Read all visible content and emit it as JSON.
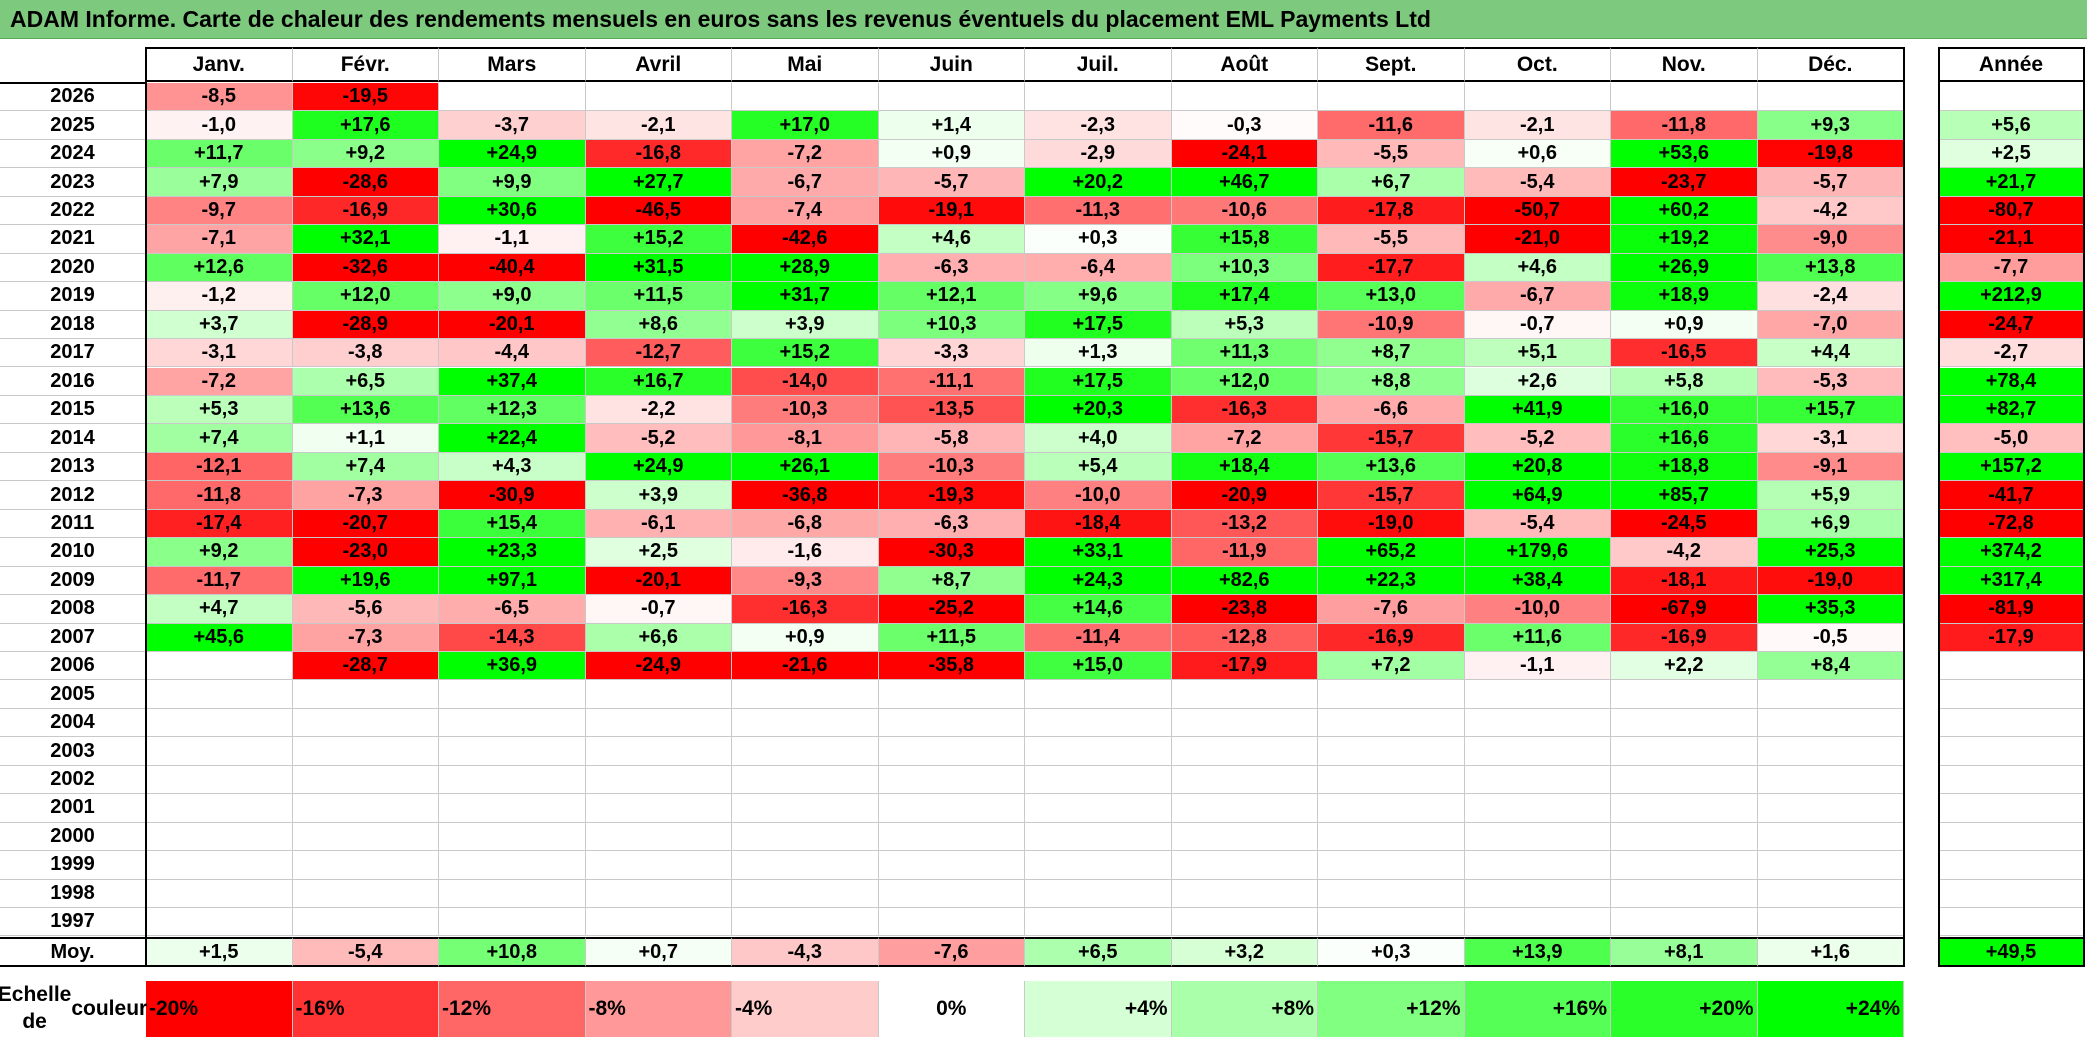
{
  "title": "ADAM Informe. Carte de chaleur des rendements mensuels en euros sans les revenus éventuels du placement EML Payments Ltd",
  "chart_data": {
    "type": "heatmap",
    "title": "ADAM Informe. Carte de chaleur des rendements mensuels en euros sans les revenus éventuels du placement EML Payments Ltd",
    "months": [
      "Janv.",
      "Févr.",
      "Mars",
      "Avril",
      "Mai",
      "Juin",
      "Juil.",
      "Août",
      "Sept.",
      "Oct.",
      "Nov.",
      "Déc."
    ],
    "year_header": "Année",
    "rows": [
      {
        "year": "2026",
        "values": [
          "-8,5",
          "-19,5",
          "",
          "",
          "",
          "",
          "",
          "",
          "",
          "",
          "",
          ""
        ],
        "annual": ""
      },
      {
        "year": "2025",
        "values": [
          "-1,0",
          "+17,6",
          "-3,7",
          "-2,1",
          "+17,0",
          "+1,4",
          "-2,3",
          "-0,3",
          "-11,6",
          "-2,1",
          "-11,8",
          "+9,3"
        ],
        "annual": "+5,6"
      },
      {
        "year": "2024",
        "values": [
          "+11,7",
          "+9,2",
          "+24,9",
          "-16,8",
          "-7,2",
          "+0,9",
          "-2,9",
          "-24,1",
          "-5,5",
          "+0,6",
          "+53,6",
          "-19,8"
        ],
        "annual": "+2,5"
      },
      {
        "year": "2023",
        "values": [
          "+7,9",
          "-28,6",
          "+9,9",
          "+27,7",
          "-6,7",
          "-5,7",
          "+20,2",
          "+46,7",
          "+6,7",
          "-5,4",
          "-23,7",
          "-5,7"
        ],
        "annual": "+21,7"
      },
      {
        "year": "2022",
        "values": [
          "-9,7",
          "-16,9",
          "+30,6",
          "-46,5",
          "-7,4",
          "-19,1",
          "-11,3",
          "-10,6",
          "-17,8",
          "-50,7",
          "+60,2",
          "-4,2"
        ],
        "annual": "-80,7"
      },
      {
        "year": "2021",
        "values": [
          "-7,1",
          "+32,1",
          "-1,1",
          "+15,2",
          "-42,6",
          "+4,6",
          "+0,3",
          "+15,8",
          "-5,5",
          "-21,0",
          "+19,2",
          "-9,0"
        ],
        "annual": "-21,1"
      },
      {
        "year": "2020",
        "values": [
          "+12,6",
          "-32,6",
          "-40,4",
          "+31,5",
          "+28,9",
          "-6,3",
          "-6,4",
          "+10,3",
          "-17,7",
          "+4,6",
          "+26,9",
          "+13,8"
        ],
        "annual": "-7,7"
      },
      {
        "year": "2019",
        "values": [
          "-1,2",
          "+12,0",
          "+9,0",
          "+11,5",
          "+31,7",
          "+12,1",
          "+9,6",
          "+17,4",
          "+13,0",
          "-6,7",
          "+18,9",
          "-2,4"
        ],
        "annual": "+212,9"
      },
      {
        "year": "2018",
        "values": [
          "+3,7",
          "-28,9",
          "-20,1",
          "+8,6",
          "+3,9",
          "+10,3",
          "+17,5",
          "+5,3",
          "-10,9",
          "-0,7",
          "+0,9",
          "-7,0"
        ],
        "annual": "-24,7"
      },
      {
        "year": "2017",
        "values": [
          "-3,1",
          "-3,8",
          "-4,4",
          "-12,7",
          "+15,2",
          "-3,3",
          "+1,3",
          "+11,3",
          "+8,7",
          "+5,1",
          "-16,5",
          "+4,4"
        ],
        "annual": "-2,7"
      },
      {
        "year": "2016",
        "values": [
          "-7,2",
          "+6,5",
          "+37,4",
          "+16,7",
          "-14,0",
          "-11,1",
          "+17,5",
          "+12,0",
          "+8,8",
          "+2,6",
          "+5,8",
          "-5,3"
        ],
        "annual": "+78,4"
      },
      {
        "year": "2015",
        "values": [
          "+5,3",
          "+13,6",
          "+12,3",
          "-2,2",
          "-10,3",
          "-13,5",
          "+20,3",
          "-16,3",
          "-6,6",
          "+41,9",
          "+16,0",
          "+15,7"
        ],
        "annual": "+82,7"
      },
      {
        "year": "2014",
        "values": [
          "+7,4",
          "+1,1",
          "+22,4",
          "-5,2",
          "-8,1",
          "-5,8",
          "+4,0",
          "-7,2",
          "-15,7",
          "-5,2",
          "+16,6",
          "-3,1"
        ],
        "annual": "-5,0"
      },
      {
        "year": "2013",
        "values": [
          "-12,1",
          "+7,4",
          "+4,3",
          "+24,9",
          "+26,1",
          "-10,3",
          "+5,4",
          "+18,4",
          "+13,6",
          "+20,8",
          "+18,8",
          "-9,1"
        ],
        "annual": "+157,2"
      },
      {
        "year": "2012",
        "values": [
          "-11,8",
          "-7,3",
          "-30,9",
          "+3,9",
          "-36,8",
          "-19,3",
          "-10,0",
          "-20,9",
          "-15,7",
          "+64,9",
          "+85,7",
          "+5,9"
        ],
        "annual": "-41,7"
      },
      {
        "year": "2011",
        "values": [
          "-17,4",
          "-20,7",
          "+15,4",
          "-6,1",
          "-6,8",
          "-6,3",
          "-18,4",
          "-13,2",
          "-19,0",
          "-5,4",
          "-24,5",
          "+6,9"
        ],
        "annual": "-72,8"
      },
      {
        "year": "2010",
        "values": [
          "+9,2",
          "-23,0",
          "+23,3",
          "+2,5",
          "-1,6",
          "-30,3",
          "+33,1",
          "-11,9",
          "+65,2",
          "+179,6",
          "-4,2",
          "+25,3"
        ],
        "annual": "+374,2"
      },
      {
        "year": "2009",
        "values": [
          "-11,7",
          "+19,6",
          "+97,1",
          "-20,1",
          "-9,3",
          "+8,7",
          "+24,3",
          "+82,6",
          "+22,3",
          "+38,4",
          "-18,1",
          "-19,0"
        ],
        "annual": "+317,4"
      },
      {
        "year": "2008",
        "values": [
          "+4,7",
          "-5,6",
          "-6,5",
          "-0,7",
          "-16,3",
          "-25,2",
          "+14,6",
          "-23,8",
          "-7,6",
          "-10,0",
          "-67,9",
          "+35,3"
        ],
        "annual": "-81,9"
      },
      {
        "year": "2007",
        "values": [
          "+45,6",
          "-7,3",
          "-14,3",
          "+6,6",
          "+0,9",
          "+11,5",
          "-11,4",
          "-12,8",
          "-16,9",
          "+11,6",
          "-16,9",
          "-0,5"
        ],
        "annual": "-17,9"
      },
      {
        "year": "2006",
        "values": [
          "",
          "-28,7",
          "+36,9",
          "-24,9",
          "-21,6",
          "-35,8",
          "+15,0",
          "-17,9",
          "+7,2",
          "-1,1",
          "+2,2",
          "+8,4"
        ],
        "annual": ""
      },
      {
        "year": "2005",
        "values": [
          "",
          "",
          "",
          "",
          "",
          "",
          "",
          "",
          "",
          "",
          "",
          ""
        ],
        "annual": ""
      },
      {
        "year": "2004",
        "values": [
          "",
          "",
          "",
          "",
          "",
          "",
          "",
          "",
          "",
          "",
          "",
          ""
        ],
        "annual": ""
      },
      {
        "year": "2003",
        "values": [
          "",
          "",
          "",
          "",
          "",
          "",
          "",
          "",
          "",
          "",
          "",
          ""
        ],
        "annual": ""
      },
      {
        "year": "2002",
        "values": [
          "",
          "",
          "",
          "",
          "",
          "",
          "",
          "",
          "",
          "",
          "",
          ""
        ],
        "annual": ""
      },
      {
        "year": "2001",
        "values": [
          "",
          "",
          "",
          "",
          "",
          "",
          "",
          "",
          "",
          "",
          "",
          ""
        ],
        "annual": ""
      },
      {
        "year": "2000",
        "values": [
          "",
          "",
          "",
          "",
          "",
          "",
          "",
          "",
          "",
          "",
          "",
          ""
        ],
        "annual": ""
      },
      {
        "year": "1999",
        "values": [
          "",
          "",
          "",
          "",
          "",
          "",
          "",
          "",
          "",
          "",
          "",
          ""
        ],
        "annual": ""
      },
      {
        "year": "1998",
        "values": [
          "",
          "",
          "",
          "",
          "",
          "",
          "",
          "",
          "",
          "",
          "",
          ""
        ],
        "annual": ""
      },
      {
        "year": "1997",
        "values": [
          "",
          "",
          "",
          "",
          "",
          "",
          "",
          "",
          "",
          "",
          "",
          ""
        ],
        "annual": ""
      }
    ],
    "average": {
      "label": "Moy.",
      "values": [
        "+1,5",
        "-5,4",
        "+10,8",
        "+0,7",
        "-4,3",
        "-7,6",
        "+6,5",
        "+3,2",
        "+0,3",
        "+13,9",
        "+8,1",
        "+1,6"
      ],
      "annual": "+49,5"
    },
    "scale": {
      "label_line1": "Echelle de",
      "label_line2": "couleur",
      "entries": [
        {
          "label": "-20%",
          "value": -20,
          "color": "#ff0000"
        },
        {
          "label": "-16%",
          "value": -16,
          "color": "#ff3333"
        },
        {
          "label": "-12%",
          "value": -12,
          "color": "#ff6666"
        },
        {
          "label": "-8%",
          "value": -8,
          "color": "#ff9999"
        },
        {
          "label": "-4%",
          "value": -4,
          "color": "#ffcccc"
        },
        {
          "label": "0%",
          "value": 0,
          "color": "#ffffff"
        },
        {
          "label": "+4%",
          "value": 4,
          "color": "#d5ffd5"
        },
        {
          "label": "+8%",
          "value": 8,
          "color": "#aaffaa"
        },
        {
          "label": "+12%",
          "value": 12,
          "color": "#80ff80"
        },
        {
          "label": "+16%",
          "value": 16,
          "color": "#55ff55"
        },
        {
          "label": "+20%",
          "value": 20,
          "color": "#2aff2a"
        },
        {
          "label": "+24%",
          "value": 24,
          "color": "#00ff00"
        }
      ]
    },
    "colors": {
      "negative_max": "#ff0000",
      "neutral": "#ffffff",
      "positive_max": "#00ff00"
    }
  }
}
